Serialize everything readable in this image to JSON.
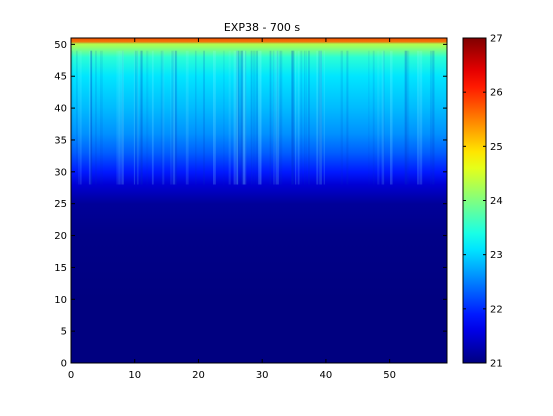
{
  "chart_data": {
    "type": "heatmap",
    "title": "EXP38 - 700 s",
    "xlabel": "",
    "ylabel": "",
    "xlim": [
      0,
      59
    ],
    "ylim": [
      0,
      51
    ],
    "x_ticks": [
      0,
      10,
      20,
      30,
      40,
      50
    ],
    "y_ticks": [
      0,
      5,
      10,
      15,
      20,
      25,
      30,
      35,
      40,
      45,
      50
    ],
    "colorbar": {
      "colormap": "jet",
      "range": [
        21,
        27
      ],
      "ticks": [
        21,
        22,
        23,
        24,
        25,
        26,
        27
      ]
    },
    "value_profile_by_height": {
      "y": [
        0,
        10,
        20,
        25,
        28,
        30,
        33,
        36,
        40,
        45,
        48,
        50,
        51
      ],
      "value": [
        21.0,
        21.0,
        21.05,
        21.15,
        21.5,
        21.9,
        22.3,
        22.6,
        22.85,
        23.1,
        23.5,
        24.3,
        26.5
      ]
    },
    "colors": {
      "background": "#ffffff",
      "axis": "#000000"
    }
  }
}
